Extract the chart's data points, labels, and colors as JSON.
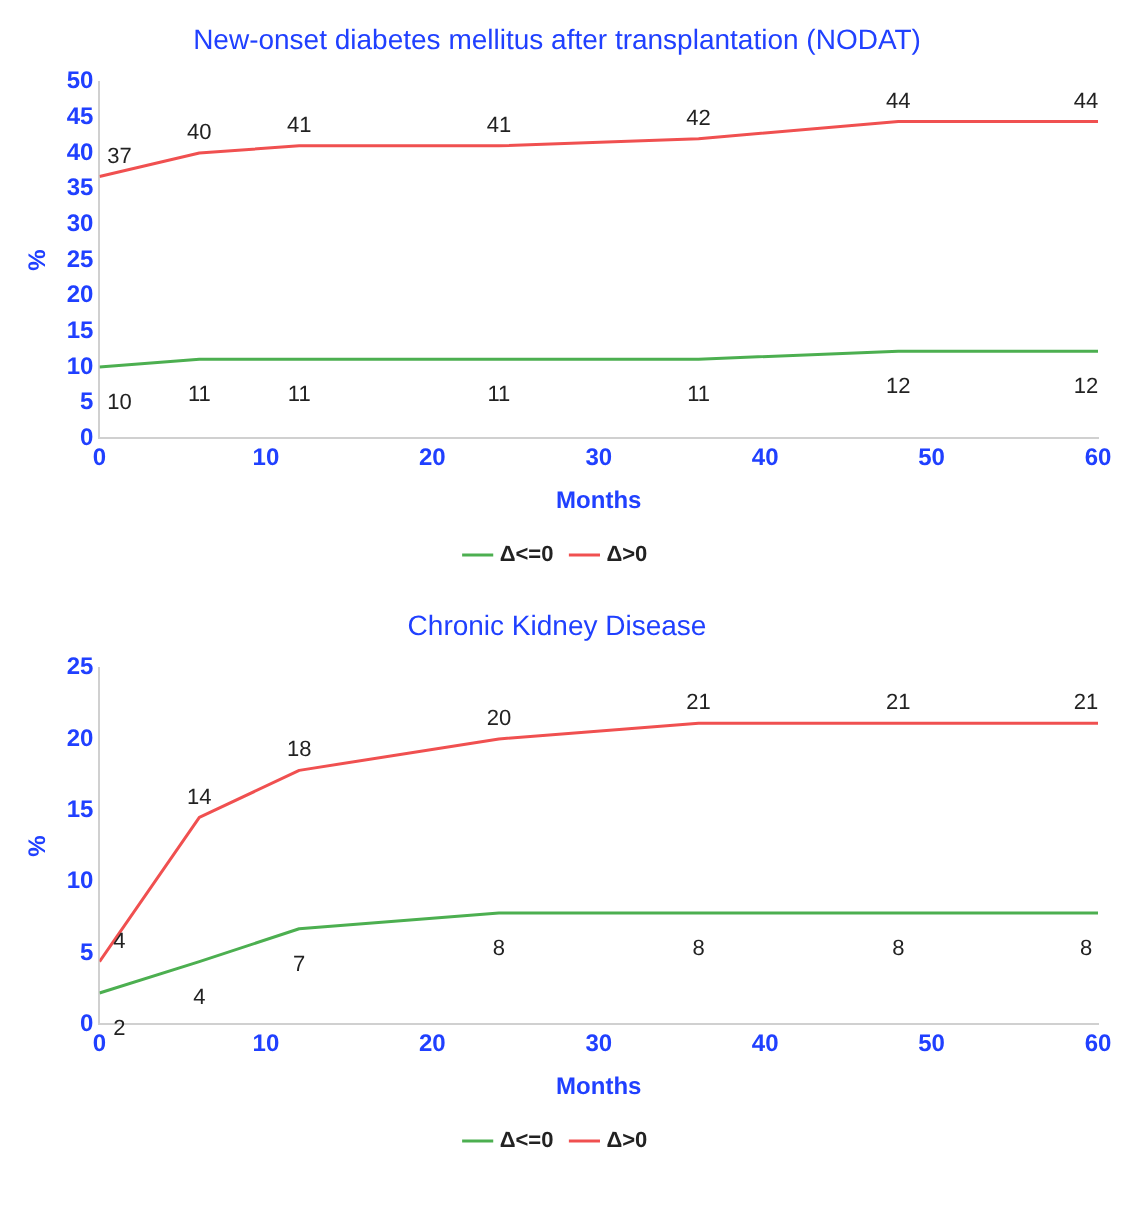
{
  "chart_data": [
    {
      "type": "line",
      "title": "New-onset diabetes mellitus after transplantation (NODAT)",
      "xlabel": "Months",
      "ylabel": "%",
      "x": [
        0,
        6,
        12,
        24,
        36,
        48,
        60
      ],
      "xlim": [
        0,
        60
      ],
      "xticks": [
        0,
        10,
        20,
        30,
        40,
        50,
        60
      ],
      "ylim": [
        0,
        50
      ],
      "yticks": [
        0,
        5,
        10,
        15,
        20,
        25,
        30,
        35,
        40,
        45,
        50
      ],
      "grid": false,
      "legend": "bottom",
      "marker": "none",
      "line_style": "solid",
      "series": [
        {
          "name": "Δ<=0",
          "color": "#4caf50",
          "values": [
            10,
            11.1,
            11.1,
            11.1,
            11.1,
            12.2,
            12.2
          ],
          "value_labels": [
            "10",
            "11",
            "11",
            "11",
            "11",
            "12",
            "12"
          ]
        },
        {
          "name": "Δ>0",
          "color": "#f05050",
          "values": [
            36.7,
            40,
            41,
            41,
            42,
            44.4,
            44.4
          ],
          "value_labels": [
            "37",
            "40",
            "41",
            "41",
            "42",
            "44",
            "44"
          ]
        }
      ]
    },
    {
      "type": "line",
      "title": "Chronic Kidney Disease",
      "xlabel": "Months",
      "ylabel": "%",
      "x": [
        0,
        6,
        12,
        24,
        36,
        48,
        60
      ],
      "xlim": [
        0,
        60
      ],
      "xticks": [
        0,
        10,
        20,
        30,
        40,
        50,
        60
      ],
      "ylim": [
        0,
        25
      ],
      "yticks": [
        0,
        5,
        10,
        15,
        20,
        25
      ],
      "grid": false,
      "legend": "bottom",
      "marker": "none",
      "line_style": "solid",
      "series": [
        {
          "name": "Δ<=0",
          "color": "#4caf50",
          "values": [
            2.2,
            4.4,
            6.7,
            7.8,
            7.8,
            7.8,
            7.8
          ],
          "value_labels": [
            "2",
            "4",
            "7",
            "8",
            "8",
            "8",
            "8"
          ]
        },
        {
          "name": "Δ>0",
          "color": "#f05050",
          "values": [
            4.4,
            14.5,
            17.8,
            20,
            21.1,
            21.1,
            21.1
          ],
          "value_labels": [
            "4",
            "14",
            "18",
            "20",
            "21",
            "21",
            "21"
          ]
        }
      ]
    }
  ]
}
